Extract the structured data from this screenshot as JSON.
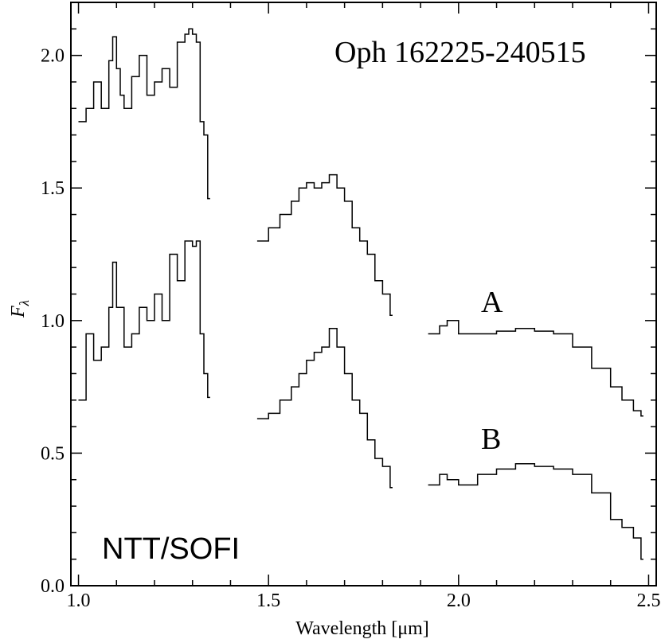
{
  "chart_data": {
    "type": "line",
    "title": "Oph 162225-240515",
    "instrument": "NTT/SOFI",
    "xlabel": "Wavelength [μm]",
    "ylabel_main": "F",
    "ylabel_sub": "λ",
    "xlim": [
      0.98,
      2.52
    ],
    "ylim": [
      0.0,
      2.2
    ],
    "xticks": [
      1.0,
      1.5,
      2.0,
      2.5
    ],
    "xtick_labels": [
      "1.0",
      "1.5",
      "2.0",
      "2.5"
    ],
    "yticks": [
      0.0,
      0.5,
      1.0,
      1.5,
      2.0
    ],
    "ytick_labels": [
      "0.0",
      "0.5",
      "1.0",
      "1.5",
      "2.0"
    ],
    "labels": {
      "A": "A",
      "B": "B"
    },
    "series": [
      {
        "name": "A",
        "segments": [
          {
            "x": [
              1.0,
              1.02,
              1.04,
              1.06,
              1.08,
              1.09,
              1.1,
              1.11,
              1.12,
              1.14,
              1.16,
              1.18,
              1.2,
              1.22,
              1.24,
              1.26,
              1.28,
              1.29,
              1.3,
              1.31,
              1.32,
              1.33,
              1.34
            ],
            "y": [
              1.75,
              1.8,
              1.9,
              1.8,
              1.98,
              2.07,
              1.95,
              1.85,
              1.8,
              1.92,
              2.0,
              1.85,
              1.9,
              1.95,
              1.88,
              2.05,
              2.08,
              2.1,
              2.08,
              2.05,
              1.75,
              1.7,
              1.46
            ]
          },
          {
            "x": [
              1.47,
              1.5,
              1.53,
              1.56,
              1.58,
              1.6,
              1.62,
              1.64,
              1.66,
              1.68,
              1.7,
              1.72,
              1.74,
              1.76,
              1.78,
              1.8,
              1.82
            ],
            "y": [
              1.3,
              1.35,
              1.4,
              1.45,
              1.5,
              1.52,
              1.5,
              1.52,
              1.55,
              1.5,
              1.45,
              1.35,
              1.3,
              1.25,
              1.15,
              1.1,
              1.02
            ]
          },
          {
            "x": [
              1.92,
              1.95,
              1.97,
              2.0,
              2.05,
              2.1,
              2.15,
              2.2,
              2.25,
              2.3,
              2.35,
              2.4,
              2.43,
              2.46,
              2.48
            ],
            "y": [
              0.95,
              0.98,
              1.0,
              0.95,
              0.95,
              0.96,
              0.97,
              0.96,
              0.95,
              0.9,
              0.82,
              0.75,
              0.7,
              0.66,
              0.64
            ]
          }
        ]
      },
      {
        "name": "B",
        "segments": [
          {
            "x": [
              1.0,
              1.02,
              1.04,
              1.06,
              1.08,
              1.09,
              1.1,
              1.12,
              1.14,
              1.16,
              1.18,
              1.2,
              1.22,
              1.24,
              1.26,
              1.28,
              1.3,
              1.31,
              1.32,
              1.33,
              1.34
            ],
            "y": [
              0.7,
              0.95,
              0.85,
              0.9,
              1.05,
              1.22,
              1.05,
              0.9,
              0.95,
              1.05,
              1.0,
              1.1,
              1.0,
              1.25,
              1.15,
              1.3,
              1.28,
              1.3,
              0.95,
              0.8,
              0.71
            ]
          },
          {
            "x": [
              1.47,
              1.5,
              1.53,
              1.56,
              1.58,
              1.6,
              1.62,
              1.64,
              1.66,
              1.68,
              1.7,
              1.72,
              1.74,
              1.76,
              1.78,
              1.8,
              1.82
            ],
            "y": [
              0.63,
              0.65,
              0.7,
              0.75,
              0.8,
              0.85,
              0.88,
              0.9,
              0.97,
              0.9,
              0.8,
              0.7,
              0.65,
              0.55,
              0.48,
              0.45,
              0.37
            ]
          },
          {
            "x": [
              1.92,
              1.95,
              1.97,
              2.0,
              2.05,
              2.1,
              2.15,
              2.2,
              2.25,
              2.3,
              2.35,
              2.4,
              2.43,
              2.46,
              2.48
            ],
            "y": [
              0.38,
              0.42,
              0.4,
              0.38,
              0.42,
              0.44,
              0.46,
              0.45,
              0.44,
              0.42,
              0.35,
              0.25,
              0.22,
              0.18,
              0.1
            ]
          }
        ]
      }
    ]
  }
}
